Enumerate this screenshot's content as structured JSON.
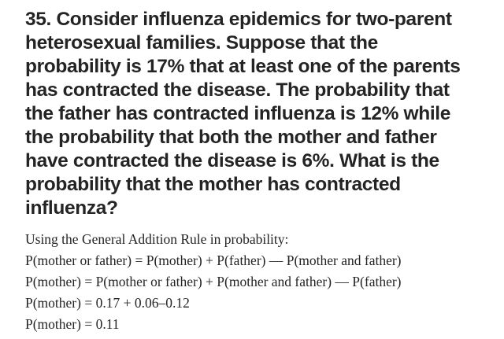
{
  "question": {
    "lines": [
      "35. Consider influenza epidemics for two-parent",
      "heterosexual families. Suppose that the",
      "probability is 17% that at least one of the parents",
      "has contracted the disease. The probability that",
      "the father has contracted influenza is 12% while",
      "the probability that both the mother and father",
      "have contracted the disease is 6%. What is the",
      "probability that the mother has contracted",
      "influenza?"
    ]
  },
  "answer": {
    "intro": "Using the General Addition Rule in probability:",
    "steps": [
      "P(mother or father) = P(mother) + P(father) — P(mother and father)",
      "P(mother) = P(mother or father) + P(mother and father) — P(father)",
      "P(mother) = 0.17 + 0.06–0.12",
      "P(mother) = 0.11"
    ]
  }
}
